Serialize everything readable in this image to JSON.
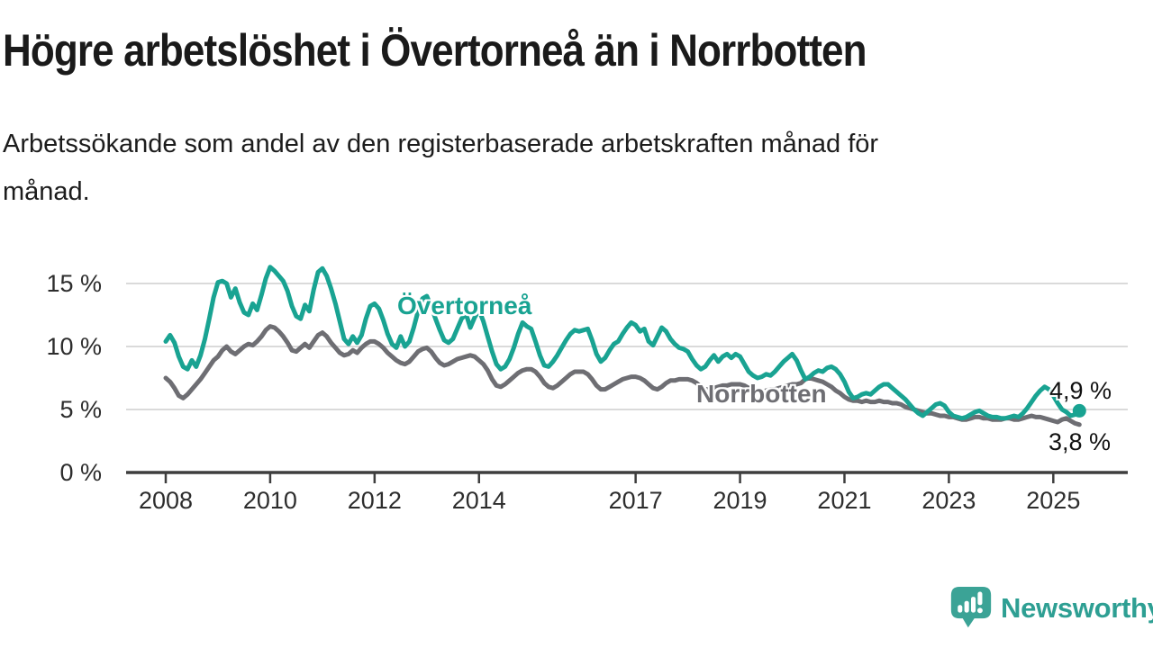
{
  "header": {
    "title": "Högre arbetslöshet i Övertorneå än i Norrbotten",
    "subtitle_line1": "Arbetssökande som andel av den registerbaserade arbetskraften månad för",
    "subtitle_line2": "månad."
  },
  "brand": {
    "name": "Newsworthy",
    "color": "#2e9f93"
  },
  "chart_data": {
    "type": "line",
    "title": "Högre arbetslöshet i Övertorneå än i Norrbotten",
    "subtitle": "Arbetssökande som andel av den registerbaserade arbetskraften månad för månad.",
    "unit": "%",
    "frequency": "monthly",
    "x_start": "2008-01",
    "x_end": "2025-07",
    "ylim": [
      0,
      17.5
    ],
    "grid": "horizontal",
    "y_ticks": [
      "15 %",
      "10 %",
      "5 %",
      "0 %"
    ],
    "y_tick_values": [
      15,
      10,
      5,
      0
    ],
    "x_ticks": [
      "2008",
      "2010",
      "2012",
      "2014",
      "2017",
      "2019",
      "2021",
      "2023",
      "2025"
    ],
    "series": [
      {
        "name": "Övertorneå",
        "color": "#19a392",
        "end_label": "4,9 %",
        "end_value": 4.9,
        "values": [
          10.4,
          10.9,
          10.3,
          9.2,
          8.4,
          8.2,
          8.9,
          8.4,
          9.3,
          10.6,
          12.2,
          13.9,
          15.1,
          15.2,
          15.0,
          13.9,
          14.6,
          13.5,
          12.7,
          12.5,
          13.4,
          12.9,
          14.1,
          15.4,
          16.3,
          16.0,
          15.6,
          15.2,
          14.4,
          13.2,
          12.4,
          12.2,
          13.3,
          12.8,
          14.5,
          15.9,
          16.2,
          15.6,
          14.6,
          13.4,
          12.0,
          10.6,
          10.2,
          10.8,
          10.3,
          10.9,
          12.2,
          13.2,
          13.4,
          13.0,
          12.1,
          11.0,
          10.2,
          9.9,
          10.8,
          10.0,
          10.4,
          11.5,
          12.8,
          13.8,
          14.0,
          13.2,
          12.2,
          11.3,
          10.5,
          10.3,
          10.6,
          11.4,
          12.2,
          12.6,
          11.5,
          12.3,
          12.9,
          12.0,
          10.8,
          9.6,
          8.6,
          8.2,
          8.4,
          9.0,
          9.9,
          11.0,
          11.9,
          11.6,
          11.4,
          10.4,
          9.3,
          8.5,
          8.4,
          8.8,
          9.3,
          9.9,
          10.5,
          11.0,
          11.3,
          11.2,
          11.3,
          11.4,
          10.5,
          9.4,
          8.8,
          9.1,
          9.7,
          10.2,
          10.4,
          11.0,
          11.5,
          11.9,
          11.7,
          11.2,
          11.4,
          10.4,
          10.1,
          10.8,
          11.5,
          11.2,
          10.6,
          10.2,
          9.9,
          9.8,
          9.6,
          9.0,
          8.5,
          8.2,
          8.4,
          8.9,
          9.3,
          8.8,
          9.2,
          9.4,
          9.1,
          9.4,
          9.2,
          8.6,
          8.0,
          7.7,
          7.5,
          7.6,
          7.8,
          7.7,
          8.0,
          8.4,
          8.8,
          9.1,
          9.4,
          8.9,
          8.1,
          7.4,
          7.6,
          7.9,
          8.1,
          8.0,
          8.3,
          8.4,
          8.2,
          7.8,
          7.2,
          6.4,
          5.9,
          6.0,
          6.2,
          6.3,
          6.2,
          6.5,
          6.8,
          7.0,
          7.0,
          6.7,
          6.4,
          6.1,
          5.8,
          5.4,
          5.0,
          4.7,
          4.5,
          4.8,
          5.1,
          5.4,
          5.5,
          5.3,
          4.8,
          4.5,
          4.4,
          4.3,
          4.4,
          4.6,
          4.8,
          4.9,
          4.7,
          4.5,
          4.4,
          4.4,
          4.3,
          4.3,
          4.4,
          4.5,
          4.4,
          4.7,
          5.1,
          5.6,
          6.1,
          6.5,
          6.8,
          6.6,
          6.1,
          5.5,
          5.0,
          4.8,
          4.5,
          4.6,
          4.9
        ]
      },
      {
        "name": "Norrbotten",
        "color": "#6e6e73",
        "end_label": "3,8 %",
        "end_value": 3.8,
        "values": [
          7.5,
          7.2,
          6.7,
          6.1,
          5.9,
          6.2,
          6.6,
          7.0,
          7.4,
          7.9,
          8.4,
          8.9,
          9.2,
          9.7,
          10.0,
          9.6,
          9.4,
          9.7,
          10.0,
          10.2,
          10.1,
          10.4,
          10.8,
          11.3,
          11.6,
          11.5,
          11.2,
          10.8,
          10.3,
          9.7,
          9.6,
          9.9,
          10.2,
          9.9,
          10.4,
          10.9,
          11.1,
          10.8,
          10.3,
          9.9,
          9.5,
          9.3,
          9.4,
          9.7,
          9.5,
          9.9,
          10.2,
          10.4,
          10.4,
          10.2,
          9.9,
          9.5,
          9.2,
          8.9,
          8.7,
          8.6,
          8.8,
          9.2,
          9.6,
          9.8,
          9.9,
          9.6,
          9.1,
          8.7,
          8.5,
          8.6,
          8.8,
          9.0,
          9.1,
          9.2,
          9.3,
          9.2,
          8.9,
          8.6,
          8.1,
          7.4,
          6.9,
          6.8,
          7.0,
          7.3,
          7.6,
          7.9,
          8.1,
          8.2,
          8.2,
          8.0,
          7.6,
          7.1,
          6.8,
          6.7,
          6.9,
          7.2,
          7.5,
          7.8,
          8.0,
          8.0,
          8.0,
          7.8,
          7.4,
          6.9,
          6.6,
          6.6,
          6.8,
          7.0,
          7.2,
          7.4,
          7.5,
          7.6,
          7.6,
          7.5,
          7.3,
          7.0,
          6.7,
          6.6,
          6.8,
          7.1,
          7.3,
          7.3,
          7.4,
          7.4,
          7.4,
          7.3,
          7.1,
          6.8,
          6.6,
          6.6,
          6.7,
          6.8,
          6.9,
          6.9,
          7.0,
          7.0,
          7.0,
          6.9,
          6.7,
          6.5,
          6.4,
          6.4,
          6.5,
          6.6,
          6.6,
          6.7,
          6.8,
          6.9,
          7.0,
          7.0,
          7.1,
          7.4,
          7.5,
          7.4,
          7.3,
          7.2,
          7.0,
          6.8,
          6.5,
          6.3,
          6.0,
          5.8,
          5.7,
          5.7,
          5.6,
          5.7,
          5.6,
          5.6,
          5.7,
          5.6,
          5.6,
          5.5,
          5.5,
          5.4,
          5.2,
          5.1,
          5.0,
          4.9,
          4.8,
          4.7,
          4.7,
          4.6,
          4.5,
          4.5,
          4.4,
          4.4,
          4.3,
          4.2,
          4.2,
          4.3,
          4.4,
          4.4,
          4.3,
          4.3,
          4.2,
          4.2,
          4.2,
          4.3,
          4.3,
          4.2,
          4.2,
          4.3,
          4.4,
          4.5,
          4.4,
          4.4,
          4.3,
          4.2,
          4.1,
          4.0,
          4.2,
          4.3,
          4.1,
          3.9,
          3.8
        ]
      }
    ]
  }
}
